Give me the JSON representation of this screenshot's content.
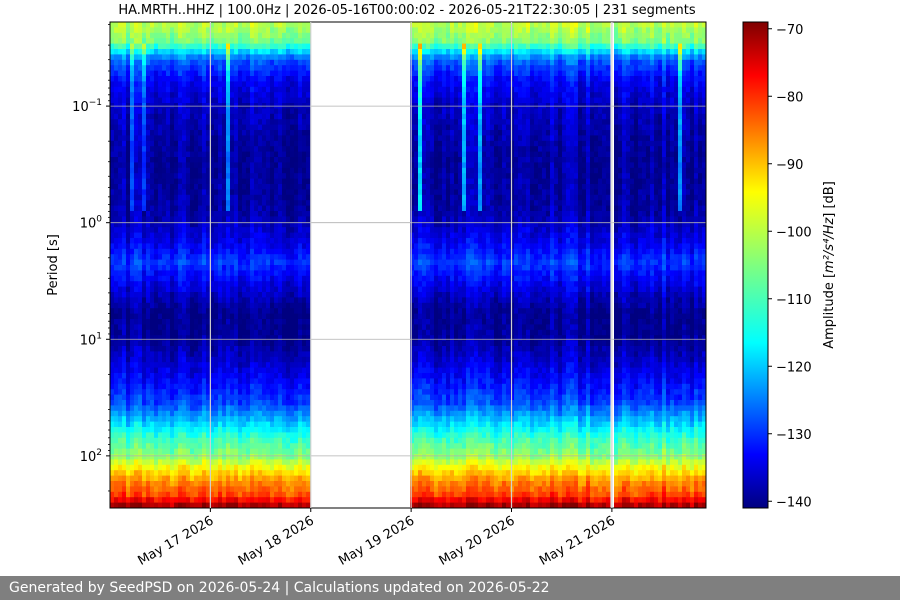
{
  "chart_data": {
    "type": "heatmap",
    "title": "HA.MRTH..HHZ | 100.0Hz | 2026-05-16T00:00:02 - 2026-05-21T22:30:05 | 231 segments",
    "ylabel": "Period [s]",
    "y_scale": "log",
    "y_range_s": [
      0.019,
      280
    ],
    "y_ticks": [
      {
        "value": 0.1,
        "base": "10",
        "exp": "−1"
      },
      {
        "value": 1,
        "base": "10",
        "exp": "0"
      },
      {
        "value": 10,
        "base": "10",
        "exp": "1"
      },
      {
        "value": 100,
        "base": "10",
        "exp": "2"
      }
    ],
    "x_range_days": [
      "2026-05-16T00:00:02",
      "2026-05-21T22:30:05"
    ],
    "x_ticks": [
      {
        "date": "2026-05-17",
        "label": "May 17 2026"
      },
      {
        "date": "2026-05-18",
        "label": "May 18 2026"
      },
      {
        "date": "2026-05-19",
        "label": "May 19 2026"
      },
      {
        "date": "2026-05-20",
        "label": "May 20 2026"
      },
      {
        "date": "2026-05-21",
        "label": "May 21 2026"
      }
    ],
    "data_gaps": [
      {
        "start": "2026-05-16T23:50",
        "end": "2026-05-17T00:05"
      },
      {
        "start": "2026-05-17T23:55",
        "end": "2026-05-19T00:00"
      },
      {
        "start": "2026-05-19T23:55",
        "end": "2026-05-20T00:05"
      },
      {
        "start": "2026-05-20T23:55",
        "end": "2026-05-21T00:05"
      }
    ],
    "grid": true,
    "colorbar": {
      "label_prefix": "Amplitude [",
      "label_math": "m²/s⁴/Hz",
      "label_suffix": "] [dB]",
      "min_db": -141,
      "max_db": -69,
      "ticks": [
        "−70",
        "−80",
        "−90",
        "−100",
        "−110",
        "−120",
        "−130",
        "−140"
      ],
      "colormap": "jet"
    }
  },
  "footer": "Generated by SeedPSD on 2026-05-24 | Calculations updated on 2026-05-22"
}
